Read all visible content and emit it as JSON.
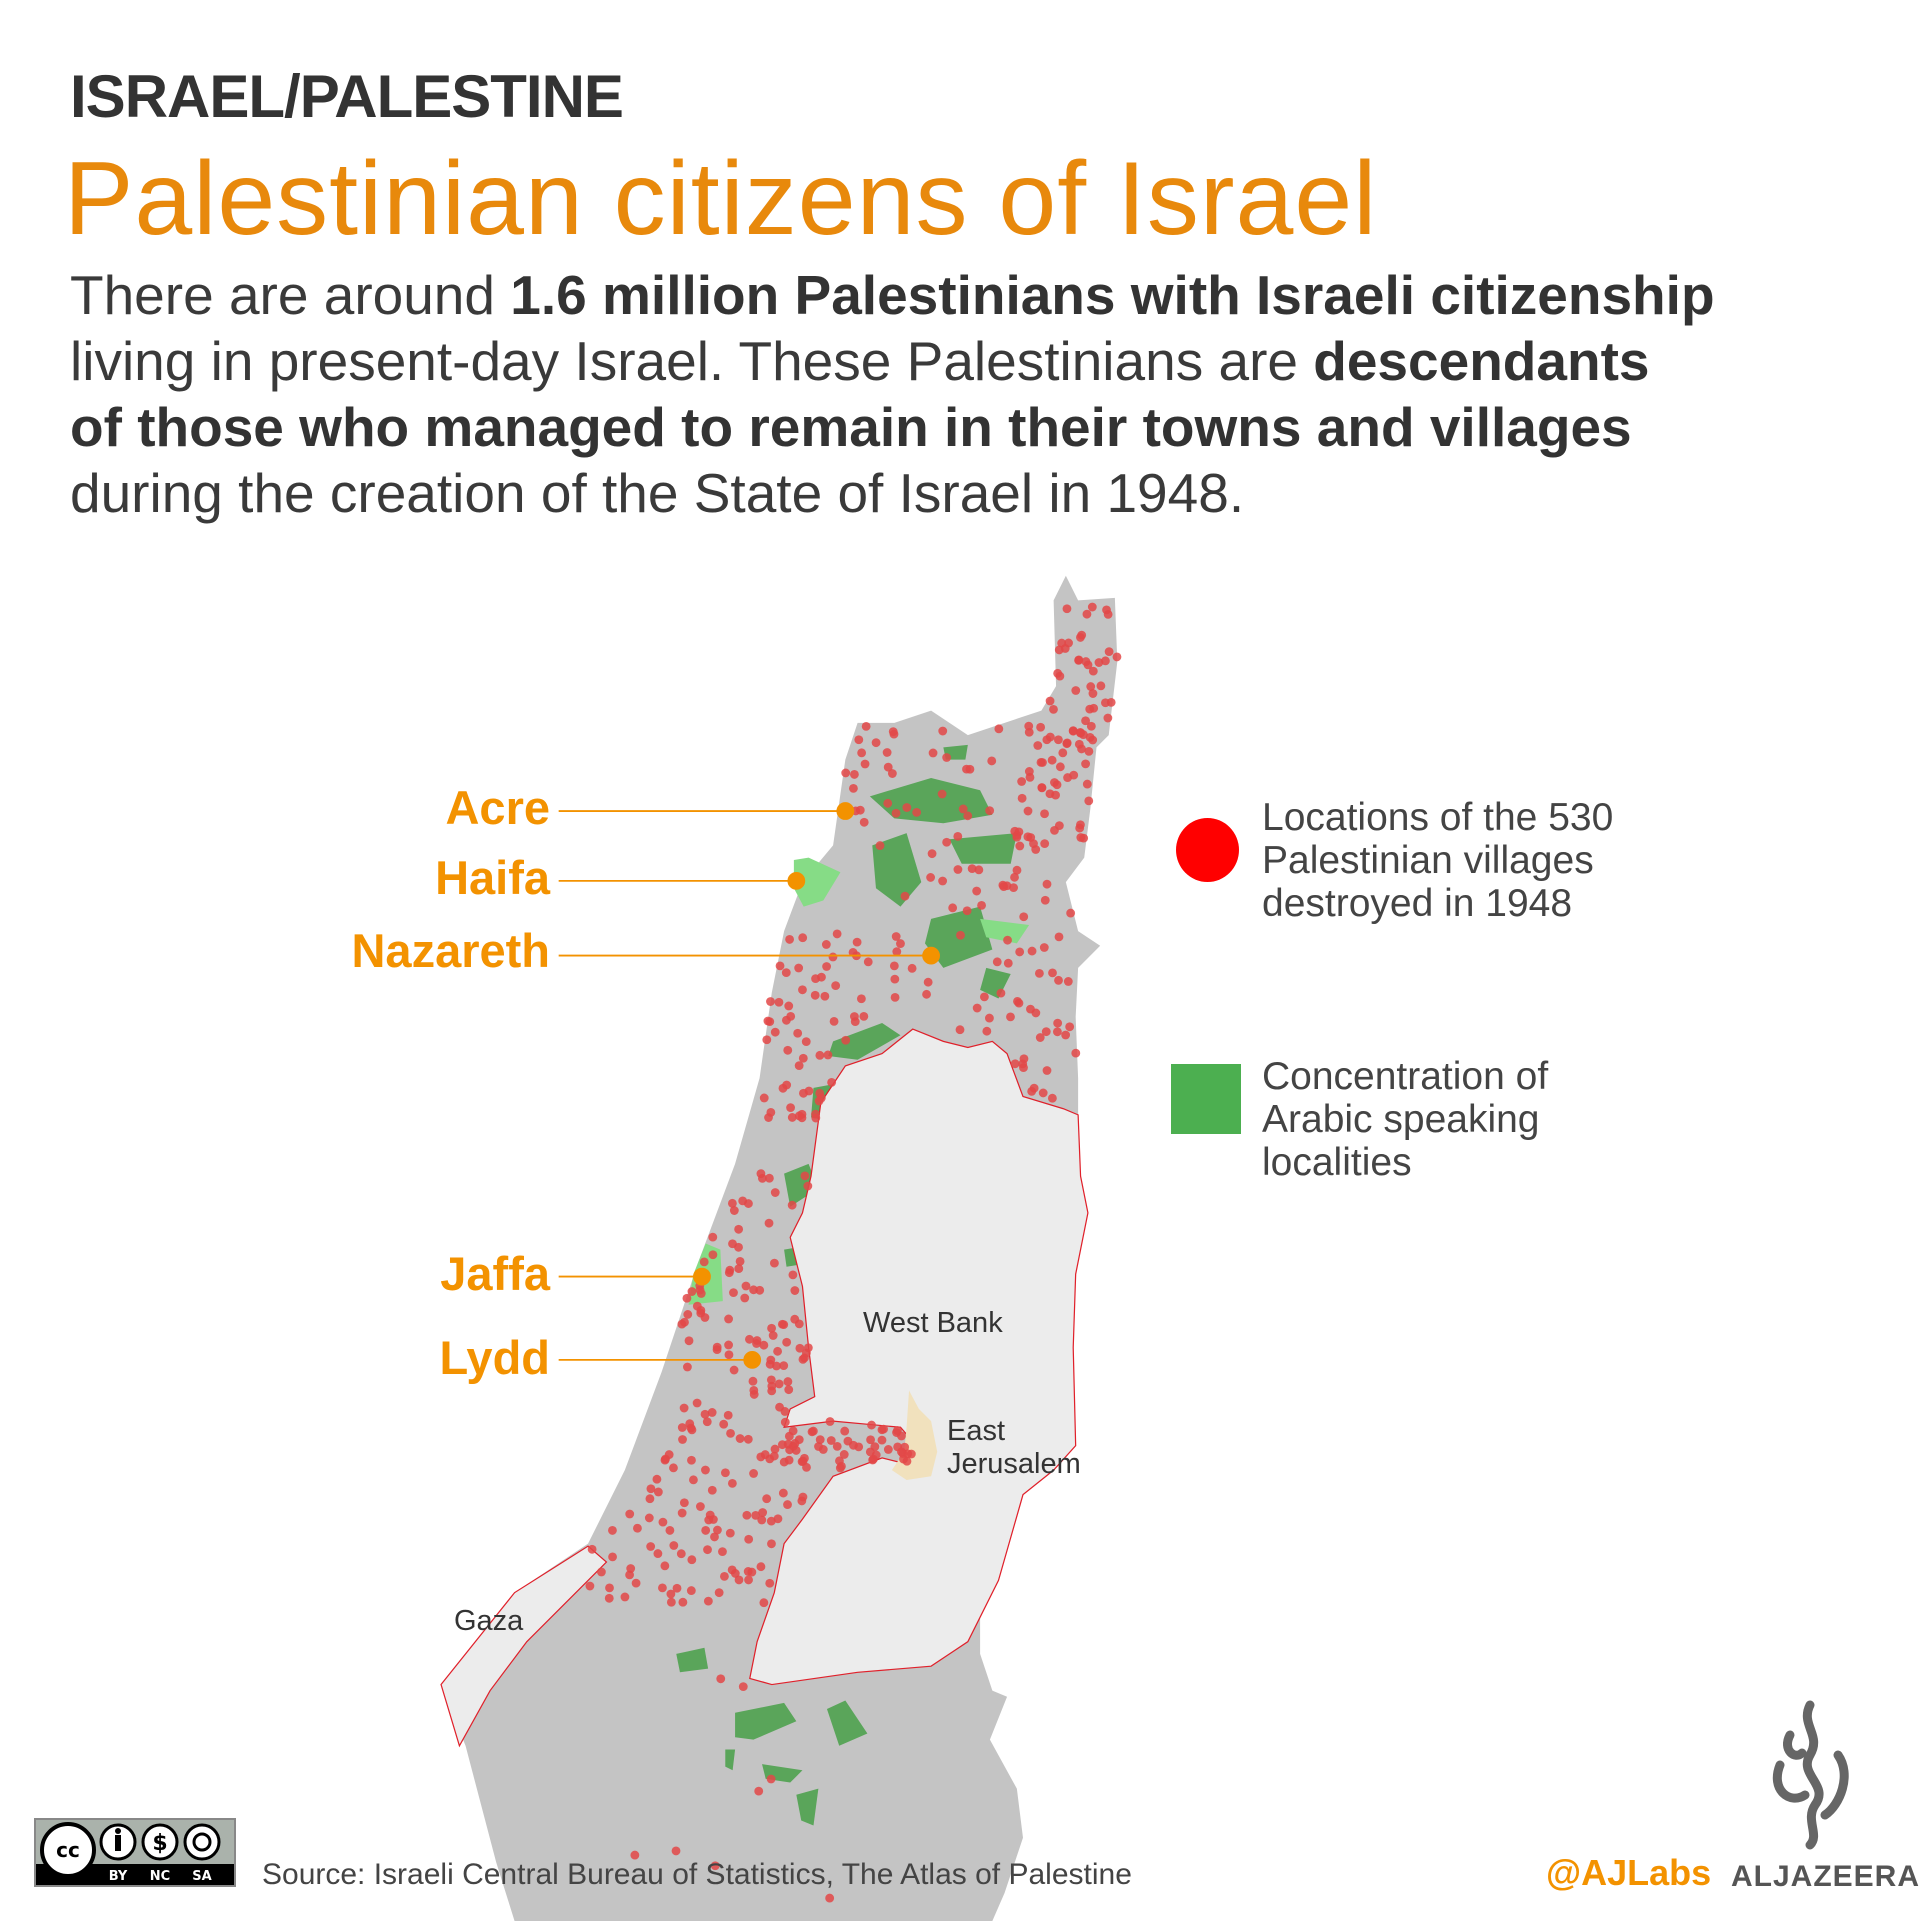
{
  "header": {
    "kicker": "ISRAEL/PALESTINE",
    "title": "Palestinian citizens of Israel",
    "body": {
      "l1_a": "There are around ",
      "l1_b": "1.6 million Palestinians with Israeli citizenship",
      "l2_a": "living in present-day Israel. These Palestinians are ",
      "l2_b": "descendants",
      "l3_b": "of those who managed to remain in their towns and villages",
      "l4_a": "during the creation of the State of Israel in 1948."
    }
  },
  "map": {
    "cities": [
      "Acre",
      "Haifa",
      "Nazareth",
      "Jaffa",
      "Lydd"
    ],
    "regions": {
      "west_bank": "West Bank",
      "east_jerusalem_1": "East",
      "east_jerusalem_2": "Jerusalem",
      "gaza": "Gaza"
    },
    "colors": {
      "land": "#c4c4c4",
      "territory": "#ececec",
      "border": "#e0202a",
      "village_dot": "#e34848",
      "arabic_localities": "#5aa55a",
      "arabic_localities_light": "#86dc86",
      "east_jerusalem": "#f1e1bd",
      "label": "#f39200"
    }
  },
  "legend": {
    "villages": {
      "line1": "Locations of the 530",
      "line2": "Palestinian villages",
      "line3": "destroyed in 1948",
      "color": "#ff0000"
    },
    "localities": {
      "line1": "Concentration of",
      "line2": "Arabic speaking",
      "line3": "localities",
      "color": "#4caf50"
    }
  },
  "footer": {
    "license": {
      "by": "BY",
      "nc": "NC",
      "sa": "SA",
      "cc": "cc"
    },
    "source": "Source: Israeli Central Bureau of Statistics, The Atlas of Palestine",
    "handle": "@AJLabs",
    "brand": "ALJAZEERA"
  }
}
